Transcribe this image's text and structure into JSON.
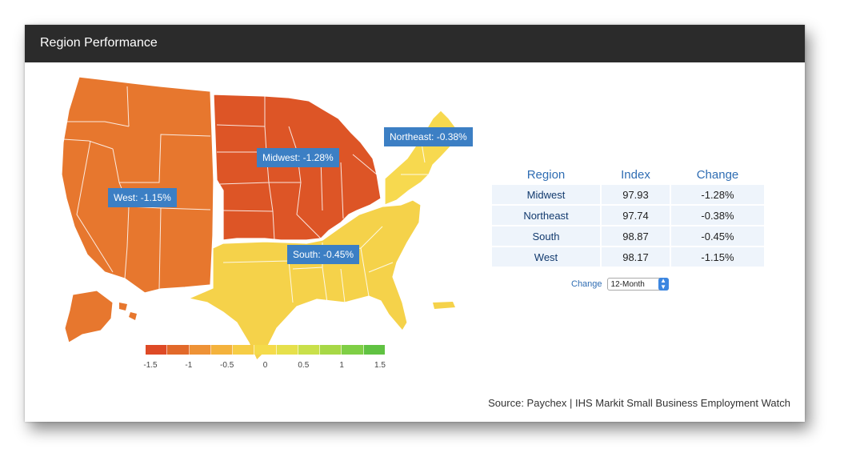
{
  "header": {
    "title": "Region Performance"
  },
  "map": {
    "regions": [
      {
        "name": "West",
        "callout": "West: -1.15%",
        "color": "#e7772e"
      },
      {
        "name": "Midwest",
        "callout": "Midwest: -1.28%",
        "color": "#dd5526"
      },
      {
        "name": "Northeast",
        "callout": "Northeast: -0.38%",
        "color": "#f7d94f"
      },
      {
        "name": "South",
        "callout": "South: -0.45%",
        "color": "#f5d24a"
      }
    ]
  },
  "legend": {
    "colors": [
      "#de4a26",
      "#e2692a",
      "#ee9236",
      "#f4b23c",
      "#f6cd45",
      "#f5db4a",
      "#e6e04b",
      "#c9e04a",
      "#a7d846",
      "#7fcf45",
      "#60c242"
    ],
    "ticks": [
      "-1.5",
      "-1",
      "-0.5",
      "0",
      "0.5",
      "1",
      "1.5"
    ]
  },
  "table": {
    "headers": [
      "Region",
      "Index",
      "Change"
    ],
    "rows": [
      {
        "region": "Midwest",
        "index": "97.93",
        "change": "-1.28%"
      },
      {
        "region": "Northeast",
        "index": "97.74",
        "change": "-0.38%"
      },
      {
        "region": "South",
        "index": "98.87",
        "change": "-0.45%"
      },
      {
        "region": "West",
        "index": "98.17",
        "change": "-1.15%"
      }
    ]
  },
  "control": {
    "label": "Change",
    "selected": "12-Month"
  },
  "source": "Source: Paychex | IHS Markit Small Business Employment Watch",
  "accent": "#3c7fc4"
}
